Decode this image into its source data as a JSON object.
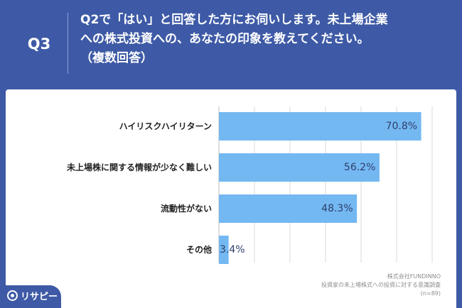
{
  "header": {
    "question_number": "Q3",
    "question_lines": [
      "Q2で「はい」と回答した方にお伺いします。未上場企業",
      "への株式投資への、あなたの印象を教えてください。",
      "（複数回答）"
    ]
  },
  "chart_data": {
    "type": "bar",
    "orientation": "horizontal",
    "categories": [
      "ハイリスクハイリターン",
      "未上場株に関する情報が少なく難しい",
      "流動性がない",
      "その他"
    ],
    "values": [
      70.8,
      56.2,
      48.3,
      3.4
    ],
    "value_labels": [
      "70.8%",
      "56.2%",
      "48.3%",
      "3.4%"
    ],
    "xlim": [
      0,
      100
    ],
    "grid": true,
    "bar_color": "#74b8f2"
  },
  "source": {
    "company": "株式会社FUNDINNO",
    "survey": "投資家の未上場株式への投資に対する意識調査",
    "sample": "(n=89)"
  },
  "logo": {
    "text": "リサピー",
    "icon": "risapi-logo-icon"
  },
  "colors": {
    "background": "#3e5aa6",
    "bar": "#74b8f2",
    "gridline": "#d9d9d9"
  }
}
